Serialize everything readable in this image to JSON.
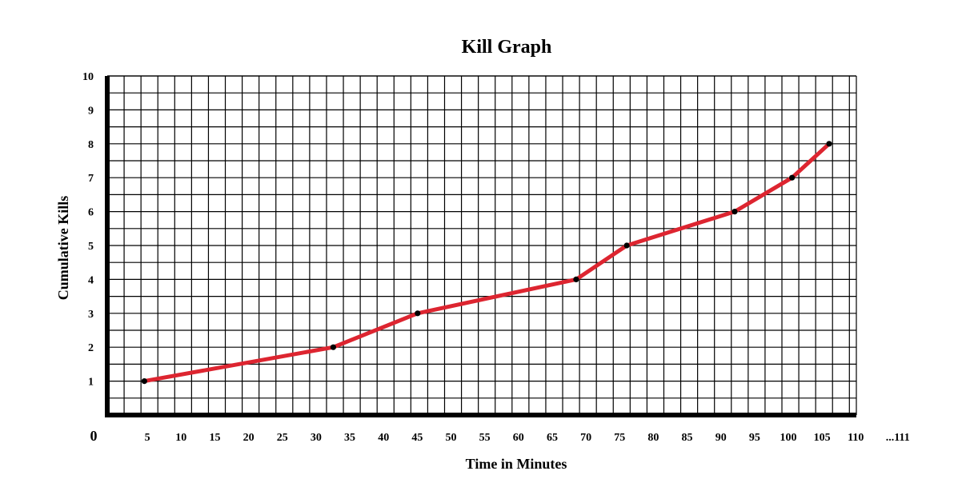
{
  "chart_data": {
    "type": "line",
    "title": "Kill Graph",
    "xlabel": "Time in Minutes",
    "ylabel": "Cumulative Kills",
    "origin_label": "0",
    "xlim": [
      0,
      111
    ],
    "ylim": [
      0,
      10
    ],
    "x_ticks": [
      5,
      10,
      15,
      20,
      25,
      30,
      35,
      40,
      45,
      50,
      55,
      60,
      65,
      70,
      75,
      80,
      85,
      90,
      95,
      100,
      105,
      110
    ],
    "x_extra_tick_label": "...111",
    "y_ticks": [
      1,
      2,
      3,
      4,
      5,
      6,
      7,
      8,
      9,
      10
    ],
    "grid": true,
    "series": [
      {
        "x": [
          5.5,
          33.5,
          46,
          69.5,
          77,
          93,
          101.5,
          107
        ],
        "y": [
          1,
          2,
          3,
          4,
          5,
          6,
          7,
          8
        ],
        "color": "#dd2530",
        "marker_color": "#000000"
      }
    ]
  }
}
